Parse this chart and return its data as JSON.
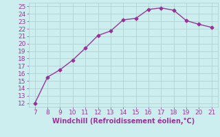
{
  "x": [
    7,
    8,
    9,
    10,
    11,
    12,
    13,
    14,
    15,
    16,
    17,
    18,
    19,
    20,
    21
  ],
  "y": [
    12,
    15.5,
    16.5,
    17.8,
    19.4,
    21.1,
    21.7,
    23.2,
    23.4,
    24.6,
    24.8,
    24.5,
    23.1,
    22.6,
    22.2
  ],
  "line_color": "#993399",
  "marker": "D",
  "marker_size": 2.5,
  "xlabel": "Windchill (Refroidissement éolien,°C)",
  "xlabel_fontsize": 7,
  "ylabel_ticks": [
    12,
    13,
    14,
    15,
    16,
    17,
    18,
    19,
    20,
    21,
    22,
    23,
    24,
    25
  ],
  "xticks": [
    7,
    8,
    9,
    10,
    11,
    12,
    13,
    14,
    15,
    16,
    17,
    18,
    19,
    20,
    21
  ],
  "ylim": [
    11.5,
    25.5
  ],
  "xlim": [
    6.5,
    21.5
  ],
  "background_color": "#cceeee",
  "grid_color": "#aacccc",
  "tick_color": "#993399",
  "label_color": "#993399",
  "linewidth": 1.0,
  "tick_fontsize": 6.5
}
